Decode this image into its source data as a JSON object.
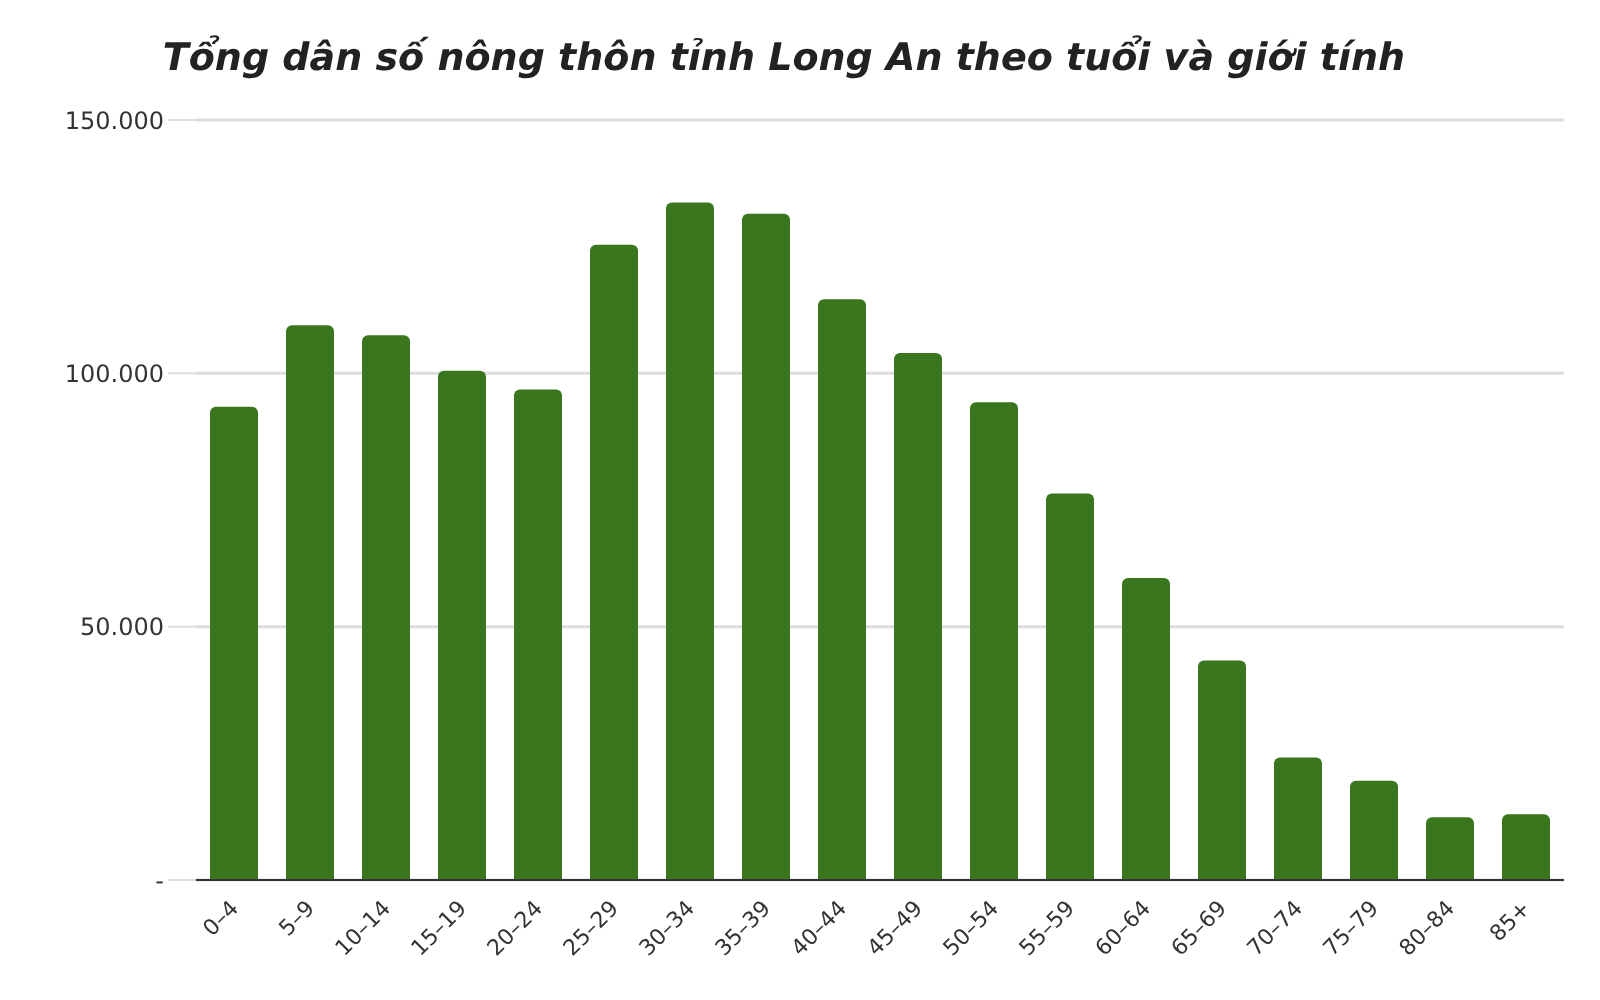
{
  "chart_data": {
    "type": "bar",
    "title": "Tổng dân số nông thôn tỉnh Long An theo tuổi và giới tính",
    "categories": [
      "0–4",
      "5–9",
      "10–14",
      "15–19",
      "20–24",
      "25–29",
      "30–34",
      "35–39",
      "40–44",
      "45–49",
      "50–54",
      "55–59",
      "60–64",
      "65–69",
      "70–74",
      "75–79",
      "80–84",
      "85+"
    ],
    "values": [
      93400,
      109500,
      107500,
      100500,
      96800,
      125400,
      133700,
      131500,
      114600,
      104000,
      94300,
      76300,
      59600,
      43300,
      24200,
      19600,
      12400,
      13000
    ],
    "color": "#3a761d",
    "ylim": [
      0,
      150000
    ],
    "yticks": [
      {
        "value": 0,
        "label": "-"
      },
      {
        "value": 50000,
        "label": "50.000"
      },
      {
        "value": 100000,
        "label": "100.000"
      },
      {
        "value": 150000,
        "label": "150.000"
      }
    ],
    "grid": "y",
    "legend": false
  }
}
